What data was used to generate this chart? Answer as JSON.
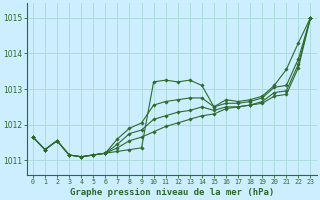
{
  "background_color": "#cceeff",
  "grid_color": "#aadddd",
  "line_color": "#2d6a2d",
  "xlabel": "Graphe pression niveau de la mer (hPa)",
  "ylim": [
    1010.6,
    1015.4
  ],
  "xlim": [
    -0.5,
    23.5
  ],
  "yticks": [
    1011,
    1012,
    1013,
    1014,
    1015
  ],
  "xticks": [
    0,
    1,
    2,
    3,
    4,
    5,
    6,
    7,
    8,
    9,
    10,
    11,
    12,
    13,
    14,
    15,
    16,
    17,
    18,
    19,
    20,
    21,
    22,
    23
  ],
  "series": [
    [
      1011.65,
      1011.3,
      1011.55,
      1011.15,
      1011.1,
      1011.15,
      1011.2,
      1011.25,
      1011.3,
      1011.35,
      1013.2,
      1013.25,
      1013.2,
      1013.25,
      1013.1,
      1012.5,
      1012.7,
      1012.65,
      1012.7,
      1012.8,
      1013.1,
      1013.55,
      1014.3,
      1015.0
    ],
    [
      1011.65,
      1011.3,
      1011.55,
      1011.15,
      1011.1,
      1011.15,
      1011.2,
      1011.6,
      1011.9,
      1012.05,
      1012.55,
      1012.65,
      1012.7,
      1012.75,
      1012.75,
      1012.5,
      1012.6,
      1012.6,
      1012.65,
      1012.75,
      1013.05,
      1013.1,
      1013.85,
      1015.0
    ],
    [
      1011.65,
      1011.3,
      1011.55,
      1011.15,
      1011.1,
      1011.15,
      1011.2,
      1011.45,
      1011.75,
      1011.85,
      1012.15,
      1012.25,
      1012.35,
      1012.4,
      1012.5,
      1012.4,
      1012.5,
      1012.5,
      1012.55,
      1012.65,
      1012.9,
      1012.95,
      1013.7,
      1015.0
    ],
    [
      1011.65,
      1011.3,
      1011.55,
      1011.15,
      1011.1,
      1011.15,
      1011.2,
      1011.35,
      1011.55,
      1011.65,
      1011.8,
      1011.95,
      1012.05,
      1012.15,
      1012.25,
      1012.3,
      1012.45,
      1012.5,
      1012.55,
      1012.6,
      1012.8,
      1012.85,
      1013.6,
      1015.0
    ]
  ]
}
